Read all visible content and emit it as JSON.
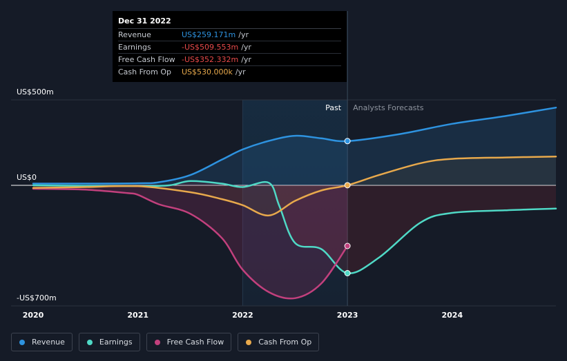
{
  "tooltip": {
    "date": "Dec 31 2022",
    "rows": [
      {
        "label": "Revenue",
        "value": "US$259.171m",
        "unit": "/yr",
        "color": "#2e93e0"
      },
      {
        "label": "Earnings",
        "value": "-US$509.553m",
        "unit": "/yr",
        "color": "#e84a4a"
      },
      {
        "label": "Free Cash Flow",
        "value": "-US$352.332m",
        "unit": "/yr",
        "color": "#e84a4a"
      },
      {
        "label": "Cash From Op",
        "value": "US$530.000k",
        "unit": "/yr",
        "color": "#e8a94c"
      }
    ]
  },
  "chart_data": {
    "type": "line",
    "y_ticks": [
      {
        "label": "US$500m",
        "value": 500
      },
      {
        "label": "US$0",
        "value": 0
      },
      {
        "label": "-US$700m",
        "value": -700
      }
    ],
    "ylim": [
      -700,
      500
    ],
    "xlim": [
      2020,
      2024.99
    ],
    "x_ticks": [
      "2020",
      "2021",
      "2022",
      "2023",
      "2024"
    ],
    "past_label": "Past",
    "forecast_label": "Analysts Forecasts",
    "divider_x": 2023.0,
    "highlight_start": 2022.0,
    "series": [
      {
        "name": "Revenue",
        "color": "#2e93e0",
        "points": [
          [
            2020.0,
            10
          ],
          [
            2020.5,
            10
          ],
          [
            2021.0,
            12
          ],
          [
            2021.2,
            18
          ],
          [
            2021.5,
            60
          ],
          [
            2021.8,
            150
          ],
          [
            2022.0,
            210
          ],
          [
            2022.25,
            260
          ],
          [
            2022.5,
            290
          ],
          [
            2022.75,
            275
          ],
          [
            2023.0,
            259
          ],
          [
            2023.5,
            300
          ],
          [
            2024.0,
            360
          ],
          [
            2024.5,
            405
          ],
          [
            2024.99,
            455
          ]
        ],
        "marker_x": 2023.0
      },
      {
        "name": "Earnings",
        "color": "#4fd9c6",
        "points": [
          [
            2020.0,
            0
          ],
          [
            2020.5,
            -3
          ],
          [
            2021.0,
            -5
          ],
          [
            2021.3,
            0
          ],
          [
            2021.5,
            25
          ],
          [
            2021.8,
            10
          ],
          [
            2022.0,
            -10
          ],
          [
            2022.25,
            15
          ],
          [
            2022.35,
            -120
          ],
          [
            2022.5,
            -335
          ],
          [
            2022.75,
            -370
          ],
          [
            2023.0,
            -510
          ],
          [
            2023.3,
            -420
          ],
          [
            2023.7,
            -215
          ],
          [
            2024.0,
            -160
          ],
          [
            2024.5,
            -145
          ],
          [
            2024.99,
            -135
          ]
        ],
        "marker_x": 2023.0
      },
      {
        "name": "Free Cash Flow",
        "color": "#c2407d",
        "points": [
          [
            2020.0,
            -20
          ],
          [
            2020.5,
            -25
          ],
          [
            2020.9,
            -45
          ],
          [
            2021.0,
            -55
          ],
          [
            2021.2,
            -110
          ],
          [
            2021.5,
            -165
          ],
          [
            2021.8,
            -305
          ],
          [
            2022.0,
            -490
          ],
          [
            2022.25,
            -620
          ],
          [
            2022.5,
            -655
          ],
          [
            2022.75,
            -570
          ],
          [
            2023.0,
            -352
          ]
        ],
        "marker_x": 2023.0
      },
      {
        "name": "Cash From Op",
        "color": "#e8a94c",
        "points": [
          [
            2020.0,
            -15
          ],
          [
            2020.5,
            -10
          ],
          [
            2021.0,
            -5
          ],
          [
            2021.5,
            -40
          ],
          [
            2021.8,
            -80
          ],
          [
            2022.0,
            -115
          ],
          [
            2022.25,
            -175
          ],
          [
            2022.5,
            -90
          ],
          [
            2022.75,
            -30
          ],
          [
            2023.0,
            0.53
          ],
          [
            2023.3,
            60
          ],
          [
            2023.7,
            130
          ],
          [
            2024.0,
            155
          ],
          [
            2024.5,
            163
          ],
          [
            2024.99,
            168
          ]
        ],
        "marker_x": 2023.0
      }
    ]
  },
  "legend": [
    {
      "label": "Revenue",
      "color": "#2e93e0"
    },
    {
      "label": "Earnings",
      "color": "#4fd9c6"
    },
    {
      "label": "Free Cash Flow",
      "color": "#c2407d"
    },
    {
      "label": "Cash From Op",
      "color": "#e8a94c"
    }
  ]
}
